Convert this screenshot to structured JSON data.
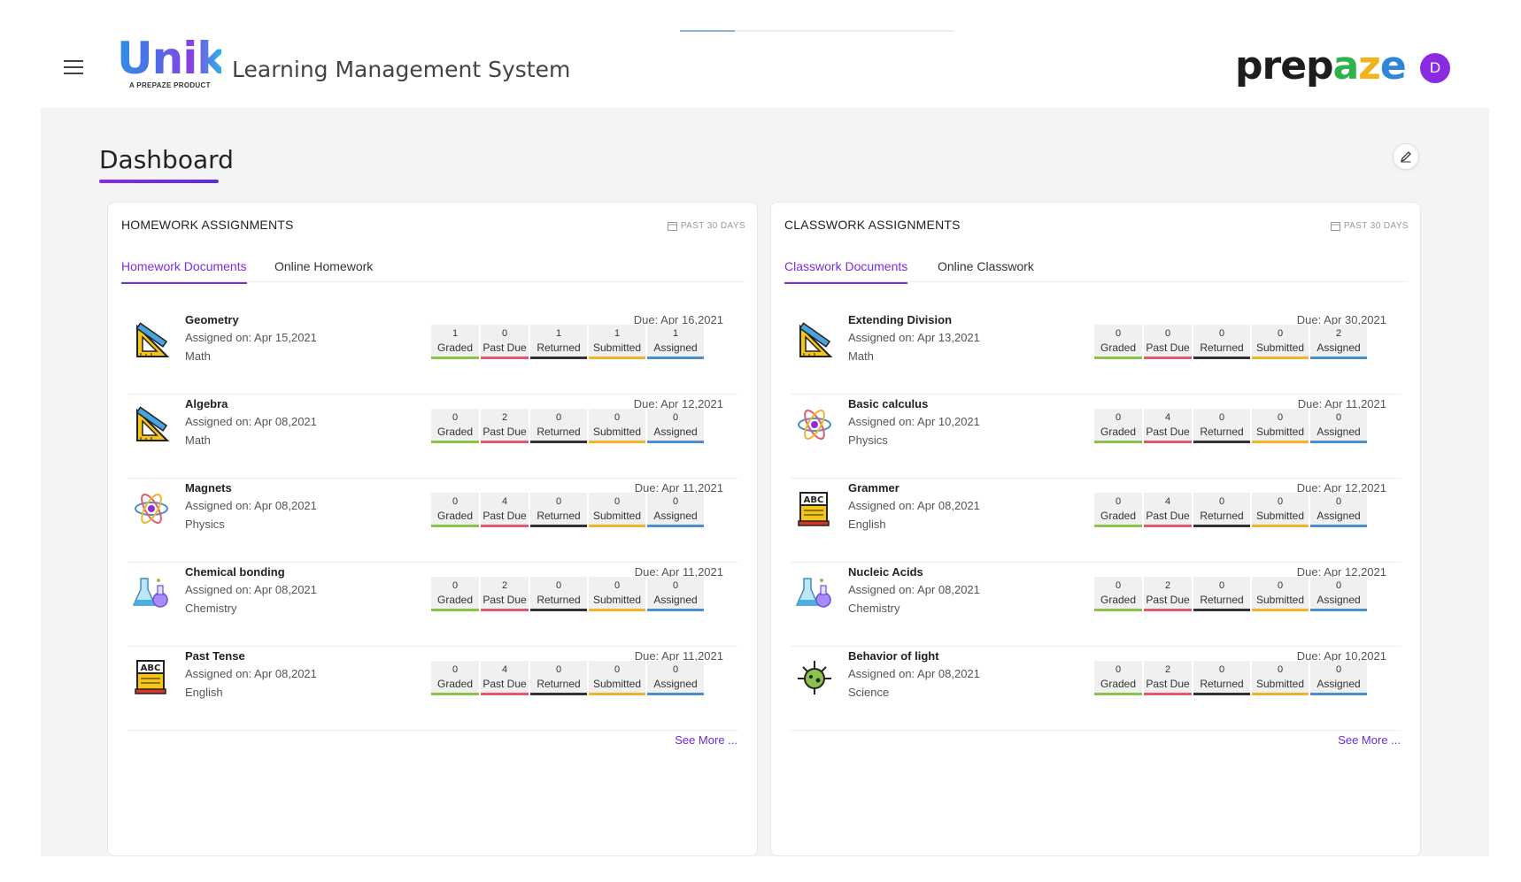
{
  "header": {
    "logo_text": "Unik",
    "logo_sub": "A PREPAZE PRODUCT",
    "app_title": "Learning Management System",
    "brand": "prepaze",
    "avatar_initial": "D",
    "progress_fraction": 0.2
  },
  "page": {
    "title": "Dashboard"
  },
  "stat_labels": [
    "Graded",
    "Past Due",
    "Returned",
    "Submitted",
    "Assigned"
  ],
  "colors": {
    "accent": "#7b2fd8",
    "graded": "#8bc34a",
    "past_due": "#e05a6d",
    "returned": "#333333",
    "submitted": "#f0b429",
    "assigned": "#4a8fcf"
  },
  "homework": {
    "title": "HOMEWORK ASSIGNMENTS",
    "range": "PAST 30 DAYS",
    "tabs": [
      "Homework Documents",
      "Online Homework"
    ],
    "see_more": "See More ...",
    "items": [
      {
        "icon": "geometry-icon",
        "name": "Geometry",
        "assigned": "Assigned on: Apr 15,2021",
        "subject": "Math",
        "due": "Due: Apr 16,2021",
        "stats": [
          "1",
          "0",
          "1",
          "1",
          "1"
        ]
      },
      {
        "icon": "geometry-icon",
        "name": "Algebra",
        "assigned": "Assigned on: Apr 08,2021",
        "subject": "Math",
        "due": "Due: Apr 12,2021",
        "stats": [
          "0",
          "2",
          "0",
          "0",
          "0"
        ]
      },
      {
        "icon": "atom-icon",
        "name": "Magnets",
        "assigned": "Assigned on: Apr 08,2021",
        "subject": "Physics",
        "due": "Due: Apr 11,2021",
        "stats": [
          "0",
          "4",
          "0",
          "0",
          "0"
        ]
      },
      {
        "icon": "flask-icon",
        "name": "Chemical bonding",
        "assigned": "Assigned on: Apr 08,2021",
        "subject": "Chemistry",
        "due": "Due: Apr 11,2021",
        "stats": [
          "0",
          "2",
          "0",
          "0",
          "0"
        ]
      },
      {
        "icon": "abc-book-icon",
        "name": "Past Tense",
        "assigned": "Assigned on: Apr 08,2021",
        "subject": "English",
        "due": "Due: Apr 11,2021",
        "stats": [
          "0",
          "4",
          "0",
          "0",
          "0"
        ]
      }
    ]
  },
  "classwork": {
    "title": "CLASSWORK ASSIGNMENTS",
    "range": "PAST 30 DAYS",
    "tabs": [
      "Classwork Documents",
      "Online Classwork"
    ],
    "see_more": "See More ...",
    "items": [
      {
        "icon": "geometry-icon",
        "name": "Extending Division",
        "assigned": "Assigned on: Apr 13,2021",
        "subject": "Math",
        "due": "Due: Apr 30,2021",
        "stats": [
          "0",
          "0",
          "0",
          "0",
          "2"
        ]
      },
      {
        "icon": "atom-icon",
        "name": "Basic calculus",
        "assigned": "Assigned on: Apr 10,2021",
        "subject": "Physics",
        "due": "Due: Apr 11,2021",
        "stats": [
          "0",
          "4",
          "0",
          "0",
          "0"
        ]
      },
      {
        "icon": "abc-book-icon",
        "name": "Grammer",
        "assigned": "Assigned on: Apr 08,2021",
        "subject": "English",
        "due": "Due: Apr 12,2021",
        "stats": [
          "0",
          "4",
          "0",
          "0",
          "0"
        ]
      },
      {
        "icon": "flask-icon",
        "name": "Nucleic Acids",
        "assigned": "Assigned on: Apr 08,2021",
        "subject": "Chemistry",
        "due": "Due: Apr 12,2021",
        "stats": [
          "0",
          "2",
          "0",
          "0",
          "0"
        ]
      },
      {
        "icon": "microbe-icon",
        "name": "Behavior of light",
        "assigned": "Assigned on: Apr 08,2021",
        "subject": "Science",
        "due": "Due: Apr 10,2021",
        "stats": [
          "0",
          "2",
          "0",
          "0",
          "0"
        ]
      }
    ]
  }
}
